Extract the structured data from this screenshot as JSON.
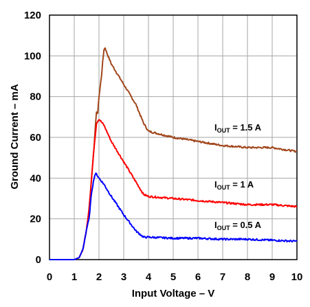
{
  "chart_data": {
    "type": "line",
    "xlabel": "Input Voltage – V",
    "ylabel": "Ground Current – mA",
    "xlim": [
      0,
      10
    ],
    "ylim": [
      0,
      120
    ],
    "xticks": [
      "0",
      "1",
      "2",
      "3",
      "4",
      "5",
      "6",
      "7",
      "8",
      "9",
      "10"
    ],
    "yticks": [
      "0",
      "20",
      "40",
      "60",
      "80",
      "100",
      "120"
    ],
    "grid": true,
    "series": [
      {
        "name": "IOUT = 1.5 A",
        "label_main": "I",
        "label_sub": "OUT",
        "label_rest": " = 1.5 A",
        "color": "#a0451a",
        "x": [
          0,
          0.5,
          1.0,
          1.2,
          1.35,
          1.5,
          1.6,
          1.7,
          1.8,
          1.85,
          1.9,
          1.95,
          2.0,
          2.1,
          2.15,
          2.2,
          2.25,
          2.3,
          2.5,
          3.0,
          3.5,
          3.8,
          4.0,
          5.0,
          6.0,
          7.0,
          8.0,
          9.0,
          10.0
        ],
        "y": [
          0,
          0,
          0,
          1,
          5,
          15,
          25,
          40,
          55,
          65,
          72,
          72,
          80,
          90,
          97,
          103,
          104,
          102,
          96,
          86,
          76,
          67,
          63,
          60,
          58,
          56,
          55,
          55,
          53
        ]
      },
      {
        "name": "IOUT = 1 A",
        "label_main": "I",
        "label_sub": "OUT",
        "label_rest": " = 1 A",
        "color": "#ff0000",
        "x": [
          0,
          0.5,
          1.0,
          1.2,
          1.35,
          1.5,
          1.6,
          1.7,
          1.8,
          1.9,
          2.0,
          2.2,
          2.5,
          3.0,
          3.5,
          3.8,
          4.0,
          5.0,
          6.0,
          7.0,
          8.0,
          9.0,
          10.0
        ],
        "y": [
          0,
          0,
          0,
          1,
          5,
          15,
          25,
          40,
          55,
          67,
          69,
          66,
          58,
          48,
          38,
          32,
          31,
          30,
          29,
          28,
          27,
          27,
          26
        ]
      },
      {
        "name": "IOUT = 0.5 A",
        "label_main": "I",
        "label_sub": "OUT",
        "label_rest": " = 0.5 A",
        "color": "#0000ff",
        "x": [
          0,
          0.5,
          1.0,
          1.2,
          1.35,
          1.5,
          1.6,
          1.7,
          1.8,
          1.85,
          1.9,
          2.0,
          2.2,
          2.5,
          3.0,
          3.5,
          3.8,
          4.0,
          5.0,
          6.0,
          7.0,
          8.0,
          9.0,
          10.0
        ],
        "y": [
          0,
          0,
          0,
          1,
          5,
          15,
          20,
          33,
          40,
          42,
          42,
          40,
          37,
          31,
          22,
          14,
          11,
          11,
          10.5,
          10.5,
          10,
          10,
          9.5,
          9
        ]
      }
    ]
  }
}
